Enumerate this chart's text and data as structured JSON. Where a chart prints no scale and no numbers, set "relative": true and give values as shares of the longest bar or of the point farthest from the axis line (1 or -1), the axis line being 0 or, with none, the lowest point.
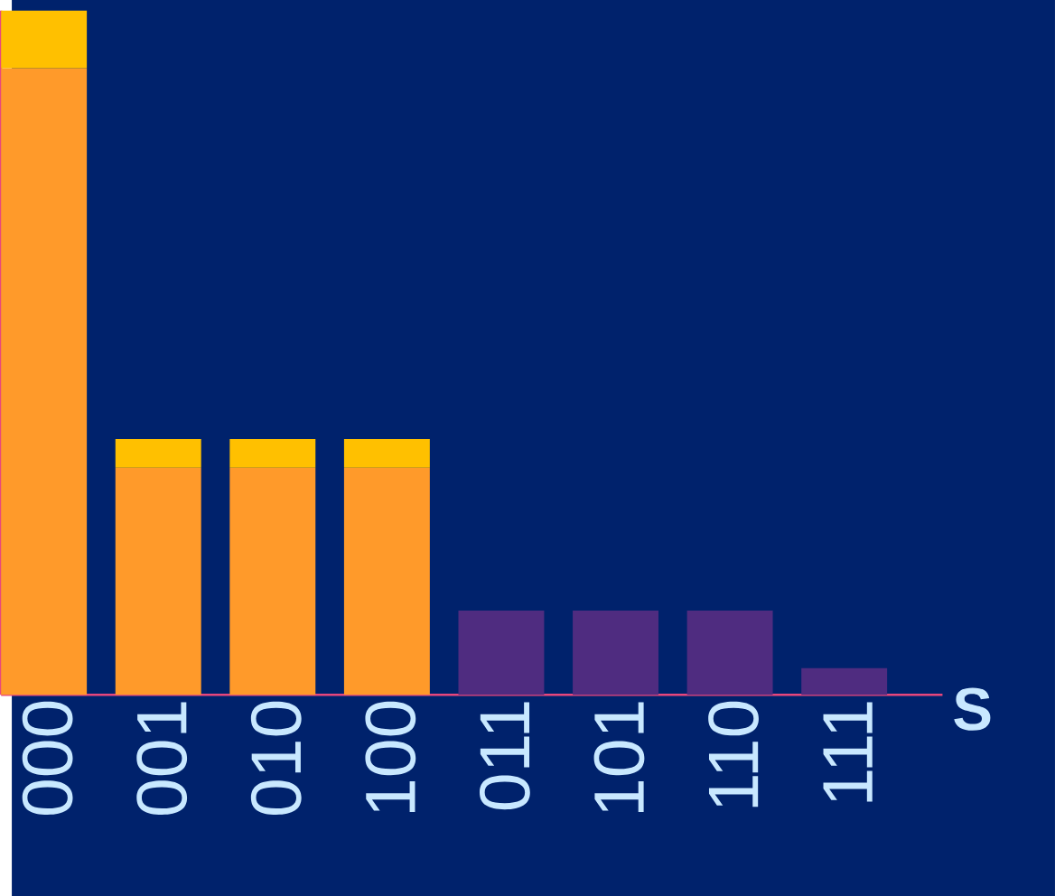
{
  "chart_data": {
    "type": "bar",
    "relative": true,
    "stacked": true,
    "xlabel": "S",
    "categories": [
      "000",
      "001",
      "010",
      "100",
      "011",
      "101",
      "110",
      "111"
    ],
    "series": [
      {
        "colors": [
          "#ff9a2a",
          "#ff9a2a",
          "#ff9a2a",
          "#ff9a2a",
          "#4f2c80",
          "#4f2c80",
          "#4f2c80",
          "#4f2c80"
        ],
        "values": [
          0.916,
          0.332,
          0.332,
          0.332,
          0.123,
          0.123,
          0.123,
          0.039
        ]
      },
      {
        "color": "#ffc000",
        "values": [
          0.084,
          0.042,
          0.042,
          0.042,
          null,
          null,
          null,
          null
        ]
      }
    ]
  }
}
